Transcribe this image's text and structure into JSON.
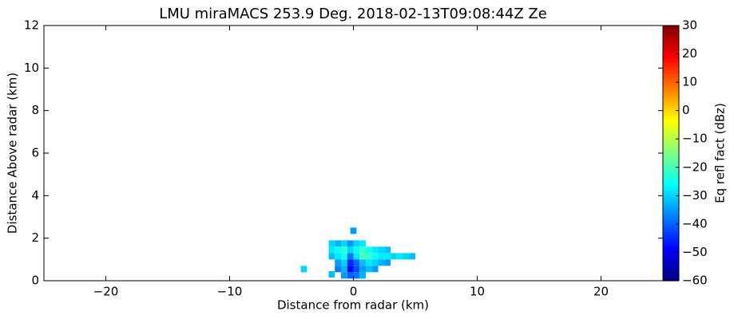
{
  "chart_data": {
    "type": "heatmap",
    "title": "LMU miraMACS 253.9 Deg. 2018-02-13T09:08:44Z  Ze",
    "x_label": "Distance from radar (km)",
    "y_label": "Distance Above radar  (km)",
    "colorbar_label": "Eq refl fact (dBz)",
    "colormap": "jet",
    "xlim": [
      -25,
      25
    ],
    "xticks": [
      {
        "value": -20,
        "label": "−20"
      },
      {
        "value": -10,
        "label": "−10"
      },
      0,
      10,
      20
    ],
    "ylim": [
      0,
      12
    ],
    "yticks": [
      0,
      2,
      4,
      6,
      8,
      10,
      12
    ],
    "clim": [
      -60,
      30
    ],
    "cticks": [
      {
        "value": -60,
        "label": "−60"
      },
      {
        "value": -50,
        "label": "−50"
      },
      {
        "value": -40,
        "label": "−40"
      },
      {
        "value": -30,
        "label": "−30"
      },
      {
        "value": -20,
        "label": "−20"
      },
      {
        "value": -10,
        "label": "−10"
      },
      0,
      10,
      20,
      30
    ],
    "x": [
      -1.75,
      -1.25,
      -0.75,
      -0.25,
      0.25,
      0.75,
      -1.75,
      -1.25,
      -0.75,
      -0.25,
      0.25,
      0.75,
      1.25,
      1.75,
      2.25,
      2.75,
      -1.75,
      -1.25,
      -0.75,
      -0.25,
      0.25,
      0.75,
      1.25,
      1.75,
      2.25,
      2.75,
      3.25,
      3.75,
      4.25,
      4.75,
      -1.25,
      -0.75,
      -0.25,
      0.25,
      0.75,
      1.25,
      1.75,
      2.25,
      2.75,
      -1.25,
      -0.75,
      -0.25,
      0.25,
      0.75,
      1.25,
      1.75,
      -0.75,
      -0.25,
      0.25,
      0.75,
      0.0,
      -4.0,
      -1.75
    ],
    "y": [
      1.75,
      1.75,
      1.75,
      1.75,
      1.75,
      1.75,
      1.45,
      1.45,
      1.45,
      1.45,
      1.45,
      1.45,
      1.45,
      1.45,
      1.45,
      1.45,
      1.15,
      1.15,
      1.15,
      1.15,
      1.15,
      1.15,
      1.15,
      1.15,
      1.15,
      1.15,
      1.15,
      1.15,
      1.15,
      1.15,
      0.85,
      0.85,
      0.85,
      0.85,
      0.85,
      0.85,
      0.85,
      0.85,
      0.85,
      0.55,
      0.55,
      0.55,
      0.55,
      0.55,
      0.55,
      0.55,
      0.25,
      0.25,
      0.25,
      0.25,
      2.35,
      0.55,
      0.3
    ],
    "values": [
      -30,
      -33,
      -30,
      -35,
      -30,
      -28,
      -28,
      -25,
      -22,
      -30,
      -25,
      -22,
      -25,
      -28,
      -30,
      -32,
      -32,
      -28,
      -25,
      -38,
      -28,
      -20,
      -22,
      -25,
      -28,
      -28,
      -30,
      -28,
      -30,
      -32,
      -35,
      -30,
      -45,
      -40,
      -32,
      -28,
      -30,
      -33,
      -35,
      -38,
      -33,
      -48,
      -42,
      -35,
      -32,
      -35,
      -35,
      -40,
      -38,
      -33,
      -35,
      -30,
      -32
    ]
  }
}
